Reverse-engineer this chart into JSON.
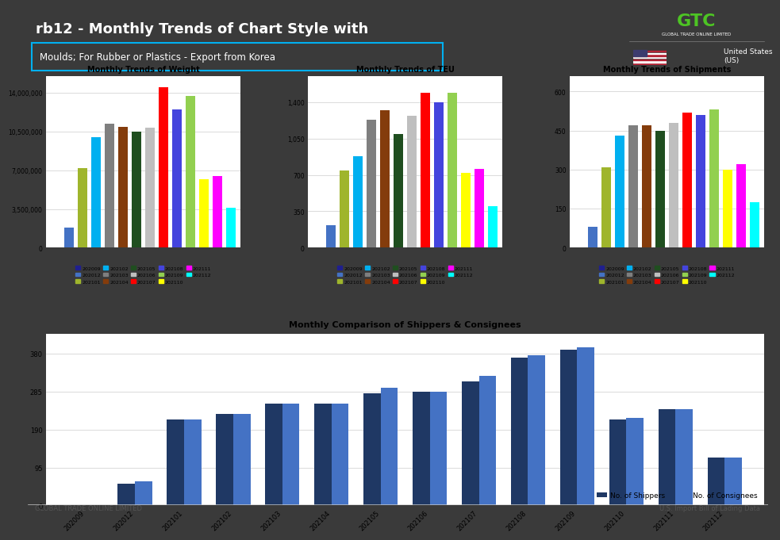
{
  "title_main": "rb12 - Monthly Trends of Chart Style with",
  "subtitle": "Moulds; For Rubber or Plastics - Export from Korea",
  "footer_left": "GLOBAL TRADE ONLINE LIMITED",
  "footer_right": "U.S. Import Bill of Lading Data",
  "months": [
    "202009",
    "202012",
    "202101",
    "202102",
    "202103",
    "202104",
    "202105",
    "202106",
    "202107",
    "202108",
    "202109",
    "202110",
    "202111",
    "202112"
  ],
  "weight_values": [
    0,
    1800000,
    7200000,
    10000000,
    11200000,
    10900000,
    10500000,
    10800000,
    14500000,
    12500000,
    13700000,
    6200000,
    6500000,
    3600000
  ],
  "teu_values": [
    0,
    220,
    740,
    880,
    1230,
    1320,
    1090,
    1270,
    1490,
    1400,
    1490,
    720,
    760,
    400
  ],
  "shipments_values": [
    0,
    80,
    310,
    430,
    470,
    470,
    450,
    480,
    520,
    510,
    530,
    300,
    320,
    175
  ],
  "shippers_values": [
    0,
    55,
    215,
    230,
    255,
    255,
    280,
    285,
    310,
    370,
    390,
    215,
    240,
    120
  ],
  "consignees_values": [
    0,
    60,
    215,
    230,
    255,
    255,
    295,
    285,
    325,
    375,
    395,
    220,
    240,
    120
  ],
  "bar_colors": [
    "#1f1f8f",
    "#4472c4",
    "#9fb52c",
    "#00b0f0",
    "#7f7f7f",
    "#843c0c",
    "#1f4e1f",
    "#bfbfbf",
    "#ff0000",
    "#4444dd",
    "#92d050",
    "#ffff00",
    "#ff00ff",
    "#00ffff"
  ],
  "weight_yticks": [
    0,
    3500000,
    7000000,
    10500000,
    14000000
  ],
  "weight_ylabels": [
    "0",
    "3,500,000",
    "7,000,000",
    "10,500,000",
    "14,000,000"
  ],
  "teu_yticks": [
    0,
    350,
    700,
    1050,
    1400
  ],
  "teu_ylabels": [
    "0",
    "350",
    "700",
    "1,050",
    "1,400"
  ],
  "shipments_yticks": [
    0,
    150,
    300,
    450,
    600
  ],
  "shipments_ylabels": [
    "0",
    "150",
    "300",
    "450",
    "600"
  ],
  "bottom_yticks": [
    0,
    95,
    190,
    285,
    380
  ],
  "bottom_ylabels": [
    "0",
    "95",
    "190",
    "285",
    "380"
  ],
  "legend_labels": [
    "202009",
    "202012",
    "202101",
    "202102",
    "202103",
    "202104",
    "202105",
    "202106",
    "202107",
    "202108",
    "202109",
    "202110",
    "202111",
    "202112"
  ],
  "bg_dark": "#3a3a3a",
  "bg_white": "#ffffff"
}
